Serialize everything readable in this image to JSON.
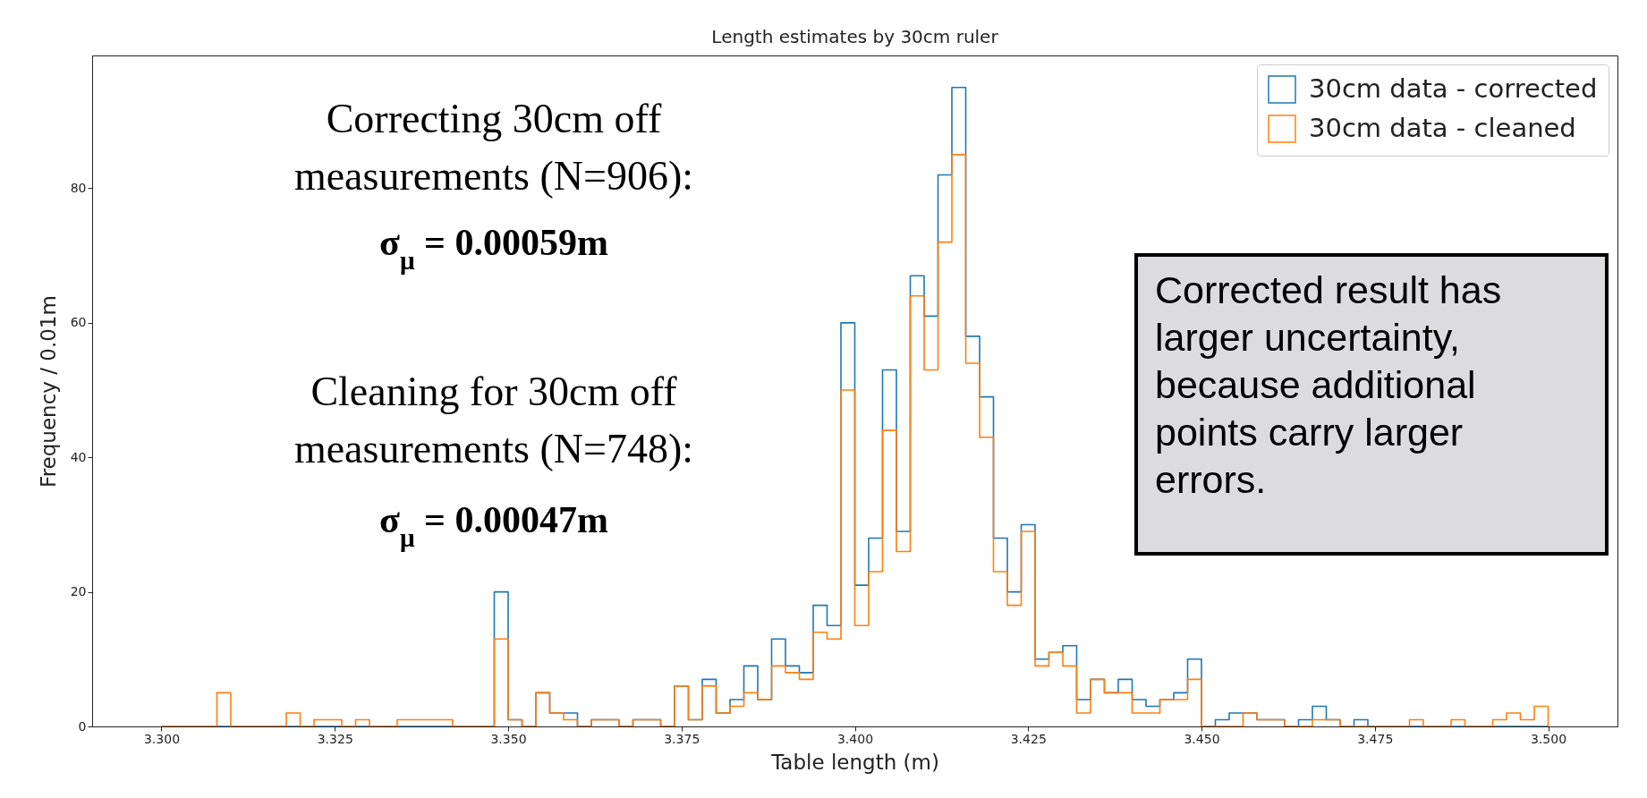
{
  "chart_data": {
    "type": "histogram",
    "title": "Length estimates by 30cm ruler",
    "xlabel": "Table length (m)",
    "ylabel": "Frequency / 0.01m",
    "bins": [
      3.3,
      3.302,
      3.304,
      3.306,
      3.308,
      3.31,
      3.312,
      3.314,
      3.316,
      3.318,
      3.32,
      3.322,
      3.324,
      3.326,
      3.328,
      3.33,
      3.332,
      3.334,
      3.336,
      3.338,
      3.34,
      3.342,
      3.344,
      3.346,
      3.348,
      3.35,
      3.352,
      3.354,
      3.356,
      3.358,
      3.36,
      3.362,
      3.364,
      3.366,
      3.368,
      3.37,
      3.372,
      3.374,
      3.376,
      3.378,
      3.38,
      3.382,
      3.384,
      3.386,
      3.388,
      3.39,
      3.392,
      3.394,
      3.396,
      3.398,
      3.4,
      3.402,
      3.404,
      3.406,
      3.408,
      3.41,
      3.412,
      3.414,
      3.416,
      3.418,
      3.42,
      3.422,
      3.424,
      3.426,
      3.428,
      3.43,
      3.432,
      3.434,
      3.436,
      3.438,
      3.44,
      3.442,
      3.444,
      3.446,
      3.448,
      3.45,
      3.452,
      3.454,
      3.456,
      3.458,
      3.46,
      3.462,
      3.464,
      3.466,
      3.468,
      3.47,
      3.472,
      3.474,
      3.476,
      3.478,
      3.48,
      3.482,
      3.484,
      3.486,
      3.488,
      3.49,
      3.492,
      3.494,
      3.496,
      3.498,
      3.5
    ],
    "series": [
      {
        "name": "30cm data - corrected",
        "color": "#1f77b4",
        "values": [
          0,
          0,
          0,
          0,
          0,
          0,
          0,
          0,
          0,
          0,
          0,
          0,
          0,
          0,
          0,
          0,
          0,
          0,
          0,
          0,
          0,
          0,
          0,
          0,
          20,
          1,
          0,
          5,
          2,
          2,
          0,
          1,
          1,
          0,
          1,
          1,
          0,
          6,
          1,
          7,
          2,
          4,
          9,
          4,
          13,
          9,
          8,
          18,
          15,
          60,
          21,
          28,
          53,
          29,
          67,
          61,
          82,
          95,
          58,
          49,
          28,
          20,
          30,
          10,
          11,
          12,
          4,
          7,
          5,
          7,
          4,
          3,
          4,
          5,
          10,
          0,
          1,
          2,
          2,
          1,
          1,
          0,
          1,
          3,
          1,
          0,
          1,
          0,
          0,
          0,
          0,
          0,
          0,
          0,
          0,
          0,
          0,
          0,
          0,
          0
        ]
      },
      {
        "name": "30cm data - cleaned",
        "color": "#ff7f0e",
        "values": [
          0,
          0,
          0,
          0,
          5,
          0,
          0,
          0,
          0,
          2,
          0,
          1,
          1,
          0,
          1,
          0,
          0,
          1,
          1,
          1,
          1,
          0,
          0,
          0,
          13,
          1,
          0,
          5,
          2,
          1,
          0,
          1,
          1,
          0,
          1,
          1,
          0,
          6,
          1,
          6,
          2,
          3,
          5,
          4,
          9,
          8,
          7,
          14,
          13,
          50,
          15,
          23,
          44,
          26,
          64,
          53,
          72,
          85,
          54,
          43,
          23,
          18,
          29,
          9,
          11,
          9,
          2,
          7,
          5,
          5,
          2,
          2,
          4,
          4,
          7,
          0,
          0,
          0,
          2,
          1,
          1,
          0,
          0,
          1,
          1,
          0,
          0,
          0,
          0,
          0,
          1,
          0,
          0,
          1,
          0,
          0,
          1,
          2,
          1,
          3
        ]
      }
    ],
    "xlim": [
      3.29,
      3.51
    ],
    "ylim": [
      0,
      99.75
    ],
    "xticks": [
      {
        "value": 3.3,
        "label": "3.300"
      },
      {
        "value": 3.325,
        "label": "3.325"
      },
      {
        "value": 3.35,
        "label": "3.350"
      },
      {
        "value": 3.375,
        "label": "3.375"
      },
      {
        "value": 3.4,
        "label": "3.400"
      },
      {
        "value": 3.425,
        "label": "3.425"
      },
      {
        "value": 3.45,
        "label": "3.450"
      },
      {
        "value": 3.475,
        "label": "3.475"
      },
      {
        "value": 3.5,
        "label": "3.500"
      }
    ],
    "yticks": [
      0,
      20,
      40,
      60,
      80
    ],
    "legend": "top right",
    "annotations": [
      "Correcting 30cm off measurements (N=906):",
      "σ$_{μ}$ = 0.00059m",
      "Cleaning for 30cm off measurements (N=748):",
      "σ$_{μ}$ = 0.00047m",
      "Corrected result has larger uncertainty, because additional points carry larger errors."
    ]
  }
}
